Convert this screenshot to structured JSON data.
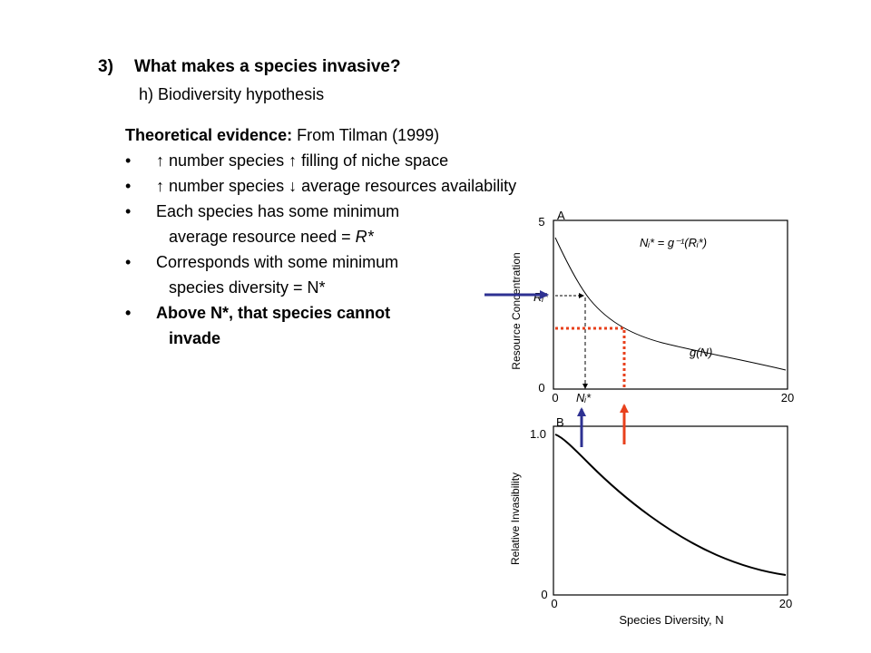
{
  "slide": {
    "heading_number": "3)",
    "heading": "What makes a species invasive?",
    "subheading": "h) Biodiversity hypothesis",
    "evidence_label": "Theoretical evidence:",
    "evidence_source": " From Tilman (1999)",
    "bullets": [
      {
        "marker": "•",
        "text": "↑ number species ↑ filling of niche space"
      },
      {
        "marker": "•",
        "text": "↑ number species ↓ average resources availability"
      },
      {
        "marker": "•",
        "text": "Each species has some minimum",
        "cont_prefix": "average resource need = ",
        "cont_italic": "R*"
      },
      {
        "marker": "•",
        "text": "Corresponds with some minimum",
        "cont": "species diversity = N*"
      },
      {
        "marker": "•",
        "text": "Above N*, that species cannot",
        "cont": "invade"
      }
    ]
  },
  "figure": {
    "panel_a": {
      "label": "A",
      "ylabel": "Resource Concentration",
      "yticks": [
        "5",
        "0"
      ],
      "xticks": [
        "0",
        "20"
      ],
      "equation": "Nᵢ* = g⁻¹(Rᵢ*)",
      "curve_label": "g(N)",
      "r_marker": "Rᵢ*",
      "n_marker": "Nᵢ*"
    },
    "panel_b": {
      "label": "B",
      "ylabel": "Relative Invasibility",
      "xlabel": "Species Diversity, N",
      "yticks": [
        "1.0",
        "0"
      ],
      "xticks": [
        "0",
        "20"
      ]
    },
    "colors": {
      "blue_arrow": "#2e3192",
      "red_arrow": "#e8401c",
      "red_dotted": "#e8401c"
    }
  }
}
